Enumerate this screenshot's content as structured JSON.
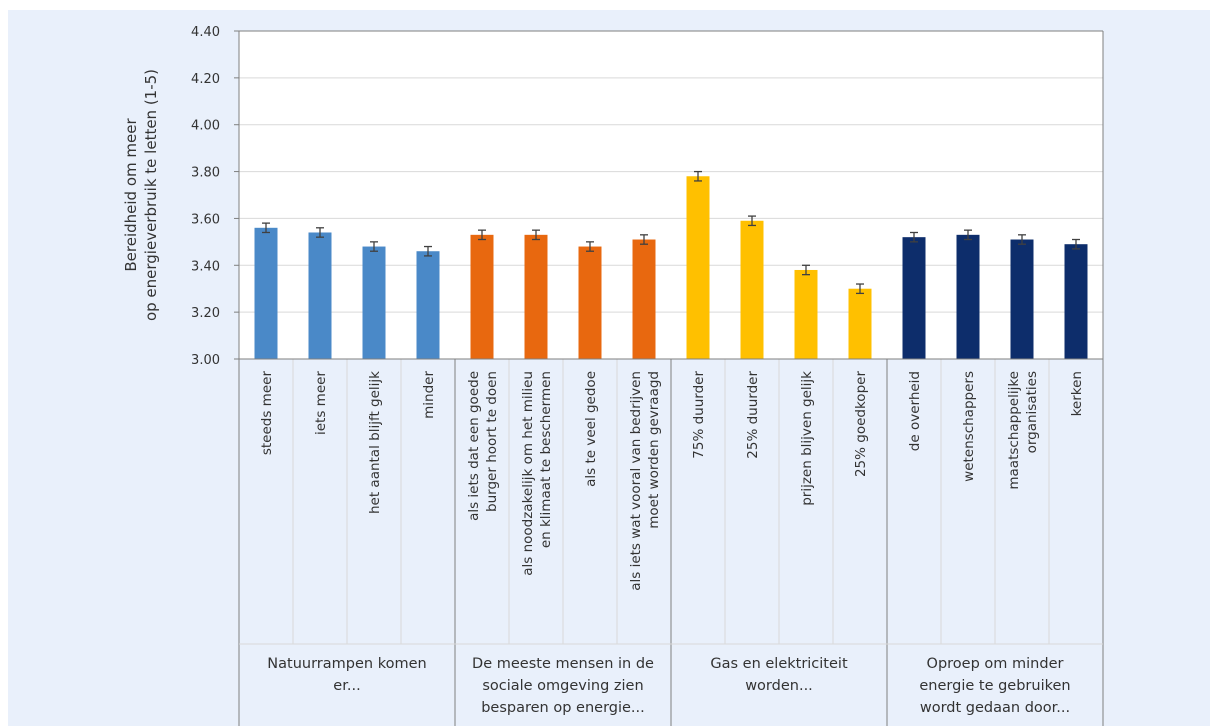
{
  "chart_data": {
    "type": "bar",
    "ylabel": [
      "Bereidheid om meer",
      "op energieverbruik te letten (1-5)"
    ],
    "xlabel": "",
    "ylim": [
      3.0,
      4.4
    ],
    "y_ticks": [
      "3.00",
      "3.20",
      "3.40",
      "3.60",
      "3.80",
      "4.00",
      "4.20",
      "4.40"
    ],
    "y_tick_values": [
      3.0,
      3.2,
      3.4,
      3.6,
      3.8,
      4.0,
      4.2,
      4.4
    ],
    "grid": true,
    "error_bars": true,
    "groups": [
      {
        "label": [
          "Natuurrampen komen",
          "er..."
        ],
        "color": "#4a89c8",
        "bars": [
          {
            "category": [
              "steeds meer"
            ],
            "value": 3.56,
            "error": 0.02
          },
          {
            "category": [
              "iets meer"
            ],
            "value": 3.54,
            "error": 0.02
          },
          {
            "category": [
              "het aantal blijft gelijk"
            ],
            "value": 3.48,
            "error": 0.02
          },
          {
            "category": [
              "minder"
            ],
            "value": 3.46,
            "error": 0.02
          }
        ]
      },
      {
        "label": [
          "De meeste mensen in de",
          "sociale omgeving zien",
          "besparen op energie..."
        ],
        "color": "#e8680f",
        "bars": [
          {
            "category": [
              "als iets dat een goede",
              "burger hoort te doen"
            ],
            "value": 3.53,
            "error": 0.02
          },
          {
            "category": [
              "als noodzakelijk om het milieu",
              "en klimaat te beschermen"
            ],
            "value": 3.53,
            "error": 0.02
          },
          {
            "category": [
              "als te veel gedoe"
            ],
            "value": 3.48,
            "error": 0.02
          },
          {
            "category": [
              "als iets wat vooral van bedrijven",
              "moet worden gevraagd"
            ],
            "value": 3.51,
            "error": 0.02
          }
        ]
      },
      {
        "label": [
          "Gas en elektriciteit",
          "worden..."
        ],
        "color": "#ffc000",
        "bars": [
          {
            "category": [
              "75% duurder"
            ],
            "value": 3.78,
            "error": 0.02
          },
          {
            "category": [
              "25% duurder"
            ],
            "value": 3.59,
            "error": 0.02
          },
          {
            "category": [
              "prijzen blijven gelijk"
            ],
            "value": 3.38,
            "error": 0.02
          },
          {
            "category": [
              "25% goedkoper"
            ],
            "value": 3.3,
            "error": 0.02
          }
        ]
      },
      {
        "label": [
          "Oproep om minder",
          "energie te gebruiken",
          "wordt gedaan door..."
        ],
        "color": "#0d2d6b",
        "bars": [
          {
            "category": [
              "de overheid"
            ],
            "value": 3.52,
            "error": 0.02
          },
          {
            "category": [
              "wetenschappers"
            ],
            "value": 3.53,
            "error": 0.02
          },
          {
            "category": [
              "maatschappelijke",
              "organisaties"
            ],
            "value": 3.51,
            "error": 0.02
          },
          {
            "category": [
              "kerken"
            ],
            "value": 3.49,
            "error": 0.02
          }
        ]
      }
    ]
  },
  "colors": {
    "background": "#e9f0fb",
    "plot_area": "#ffffff",
    "gridline": "#d9d9d9",
    "axis": "#7f7f7f",
    "error_bar": "#404040",
    "text": "#333333"
  }
}
